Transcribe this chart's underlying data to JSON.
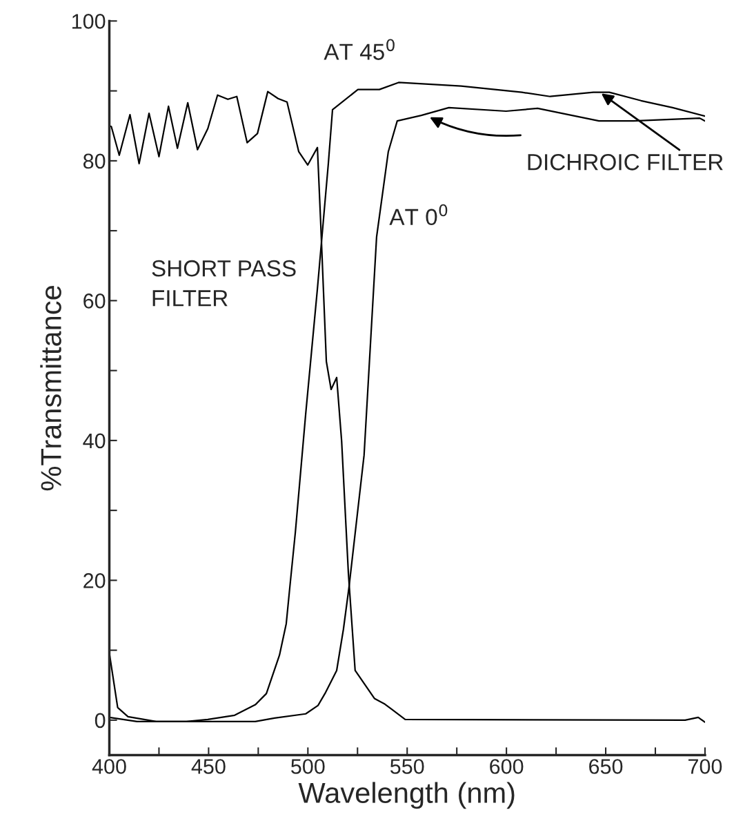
{
  "chart_data": {
    "type": "line",
    "xlabel": "Wavelength (nm)",
    "ylabel": "%Transmittance",
    "xlim": [
      400,
      700
    ],
    "ylim": [
      -5,
      100
    ],
    "xticks": [
      400,
      {
        "value": 425,
        "label": null
      },
      450,
      {
        "value": 475,
        "label": null
      },
      500,
      {
        "value": 525,
        "label": null
      },
      550,
      {
        "value": 575,
        "label": null
      },
      600,
      {
        "value": 625,
        "label": null
      },
      650,
      {
        "value": 675,
        "label": null
      },
      700
    ],
    "yticks": [
      0,
      {
        "value": 10,
        "label": null
      },
      20,
      {
        "value": 30,
        "label": null
      },
      40,
      {
        "value": 50,
        "label": null
      },
      60,
      {
        "value": 70,
        "label": null
      },
      80,
      {
        "value": 90,
        "label": null
      },
      100
    ],
    "grid": false,
    "legend": false,
    "marker": "none",
    "line_style": "solid",
    "series": [
      {
        "color": "#000000",
        "x": [
          400,
          401,
          405,
          410.4,
          415,
          420,
          425,
          429.8,
          434.3,
          439.5,
          444.4,
          449.6,
          454.5,
          459.7,
          464.2,
          469.4,
          474.6,
          479.8,
          485,
          489.5,
          495.4,
          499.9,
          504.8,
          506.5,
          509.3,
          511.7,
          514.5,
          517,
          520.4,
          523.8,
          533.5,
          538.7,
          542,
          549,
          690,
          696.6,
          700
        ],
        "values": [
          85,
          84.9,
          80.8,
          86.6,
          79.6,
          86.8,
          80.6,
          87.8,
          81.8,
          88.3,
          81.6,
          84.6,
          89.4,
          88.8,
          89.2,
          82.6,
          83.9,
          89.9,
          88.9,
          88.4,
          81.3,
          79.4,
          81.9,
          70.8,
          51.3,
          47.3,
          49,
          39.9,
          21,
          7.1,
          3.1,
          2.3,
          1.6,
          0.1,
          0,
          0.4,
          -0.3
        ]
      },
      {
        "color": "#000000",
        "x": [
          400,
          404.2,
          409.4,
          423.6,
          438.8,
          449.6,
          463.1,
          473.5,
          479.1,
          485.7,
          489.1,
          490.9,
          493.7,
          498.9,
          504.8,
          510.3,
          512.4,
          525.2,
          536,
          545.7,
          577.2,
          607.8,
          622,
          643.8,
          651.8,
          667.8,
          683.7,
          700
        ],
        "values": [
          9.6,
          1.8,
          0.5,
          -0.2,
          -0.2,
          0.1,
          0.7,
          2.2,
          3.8,
          9.3,
          13.8,
          19,
          26.9,
          43.8,
          61.7,
          79.6,
          87.3,
          90.2,
          90.2,
          91.2,
          90.7,
          89.8,
          89.2,
          89.8,
          89.8,
          88.6,
          87.6,
          86.4
        ]
      },
      {
        "color": "#000000",
        "x": [
          400,
          413.9,
          473.5,
          483.2,
          498.9,
          505.1,
          508.6,
          514.5,
          517.9,
          520.7,
          528.3,
          534.6,
          540.5,
          545,
          557.1,
          571,
          599.8,
          615.7,
          646.6,
          664,
          697.3,
          700
        ],
        "values": [
          0.4,
          -0.2,
          -0.2,
          0.3,
          0.9,
          2.1,
          3.8,
          7.1,
          13,
          19,
          37.9,
          69.1,
          81.3,
          85.7,
          86.5,
          87.6,
          87.1,
          87.5,
          85.7,
          85.7,
          86.1,
          85.7
        ]
      }
    ],
    "annotations": [
      {
        "text": "AT 45$^{0}$"
      },
      {
        "text": "AT 0$^{0}$"
      },
      {
        "text": "SHORT PASS\nFILTER"
      },
      {
        "text": "DICHROIC FILTER",
        "x": 647,
        "y": 89.8
      }
    ]
  }
}
